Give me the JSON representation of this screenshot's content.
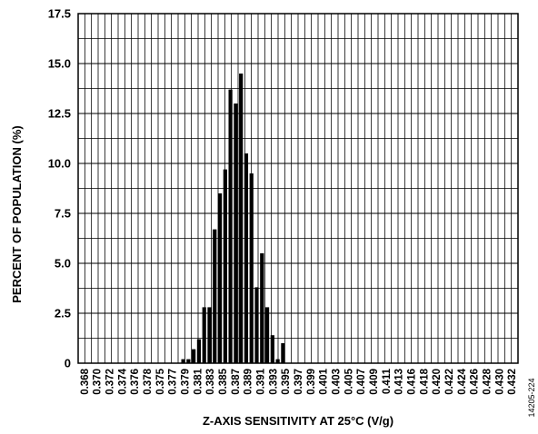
{
  "chart_data": {
    "type": "bar",
    "xlabel": "Z-AXIS SENSITIVITY AT 25°C (V/g)",
    "ylabel": "PERCENT OF POPULATION (%)",
    "ylim": [
      0,
      17.5
    ],
    "y_ticks": [
      "0",
      "2.5",
      "5.0",
      "7.5",
      "10.0",
      "12.5",
      "15.0",
      "17.5"
    ],
    "categories": [
      "0.368",
      "0.370",
      "0.372",
      "0.374",
      "0.376",
      "0.378",
      "0.375",
      "0.377",
      "0.379",
      "0.381",
      "0.383",
      "0.385",
      "0.387",
      "0.389",
      "0.391",
      "0.393",
      "0.395",
      "0.397",
      "0.399",
      "0.401",
      "0.403",
      "0.405",
      "0.407",
      "0.409",
      "0.411",
      "0.413",
      "0.416",
      "0.418",
      "0.420",
      "0.422",
      "0.424",
      "0.426",
      "0.428",
      "0.430",
      "0.432"
    ],
    "grid": true,
    "bars": [
      {
        "x": 0.383,
        "value": 0.2
      },
      {
        "x": 0.3838,
        "value": 0.2
      },
      {
        "x": 0.3846,
        "value": 0.7
      },
      {
        "x": 0.3854,
        "value": 1.2
      },
      {
        "x": 0.3862,
        "value": 2.8
      },
      {
        "x": 0.387,
        "value": 2.8
      },
      {
        "x": 0.3878,
        "value": 6.7
      },
      {
        "x": 0.3886,
        "value": 8.5
      },
      {
        "x": 0.3894,
        "value": 9.7
      },
      {
        "x": 0.3902,
        "value": 13.7
      },
      {
        "x": 0.391,
        "value": 13.0
      },
      {
        "x": 0.3918,
        "value": 14.5
      },
      {
        "x": 0.3926,
        "value": 10.5
      },
      {
        "x": 0.3934,
        "value": 9.5
      },
      {
        "x": 0.3942,
        "value": 3.8
      },
      {
        "x": 0.395,
        "value": 5.5
      },
      {
        "x": 0.3958,
        "value": 2.8
      },
      {
        "x": 0.3966,
        "value": 1.4
      },
      {
        "x": 0.3974,
        "value": 0.2
      },
      {
        "x": 0.3982,
        "value": 1.0
      }
    ]
  },
  "figure_code": "14205-224"
}
